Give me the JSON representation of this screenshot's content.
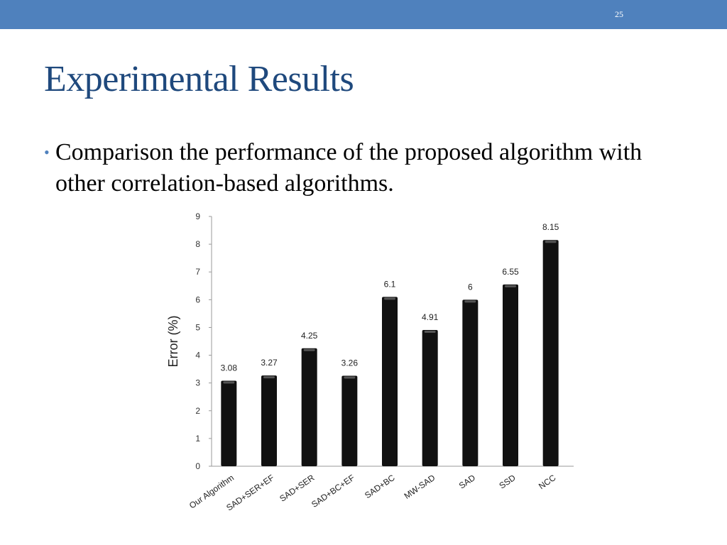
{
  "slide": {
    "number": "25",
    "title": "Experimental Results",
    "bullet": "Comparison the performance of the proposed algorithm with other correlation-based algorithms.",
    "accent": "#4f81bd",
    "title_color": "#1f497d"
  },
  "chart_data": {
    "type": "bar",
    "categories": [
      "Our Algorithm",
      "SAD+SER+EF",
      "SAD+SER",
      "SAD+BC+EF",
      "SAD+BC",
      "MW-SAD",
      "SAD",
      "SSD",
      "NCC"
    ],
    "values": [
      3.08,
      3.27,
      4.25,
      3.26,
      6.1,
      4.91,
      6,
      6.55,
      8.15
    ],
    "value_labels": [
      "3.08",
      "3.27",
      "4.25",
      "3.26",
      "6.1",
      "4.91",
      "6",
      "6.55",
      "8.15"
    ],
    "ylabel": "Error (%)",
    "ylim": [
      0,
      9
    ],
    "yticks": [
      "0",
      "1",
      "2",
      "3",
      "4",
      "5",
      "6",
      "7",
      "8",
      "9"
    ],
    "grid": false,
    "bar_color": "#111111"
  }
}
